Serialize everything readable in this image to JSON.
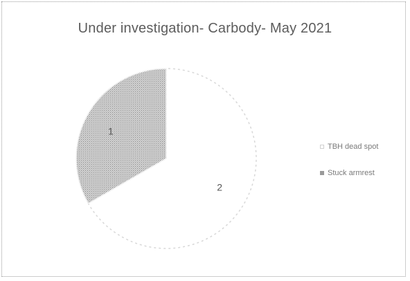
{
  "chart_data": {
    "type": "pie",
    "title": "Under investigation- Carbody- May 2021",
    "categories": [
      "TBH dead spot",
      "Stuck armrest"
    ],
    "values": [
      2,
      1
    ],
    "data_labels": [
      "2",
      "1"
    ],
    "colors": [
      "#ffffff",
      "#c4c4c4"
    ],
    "legend": "right"
  }
}
